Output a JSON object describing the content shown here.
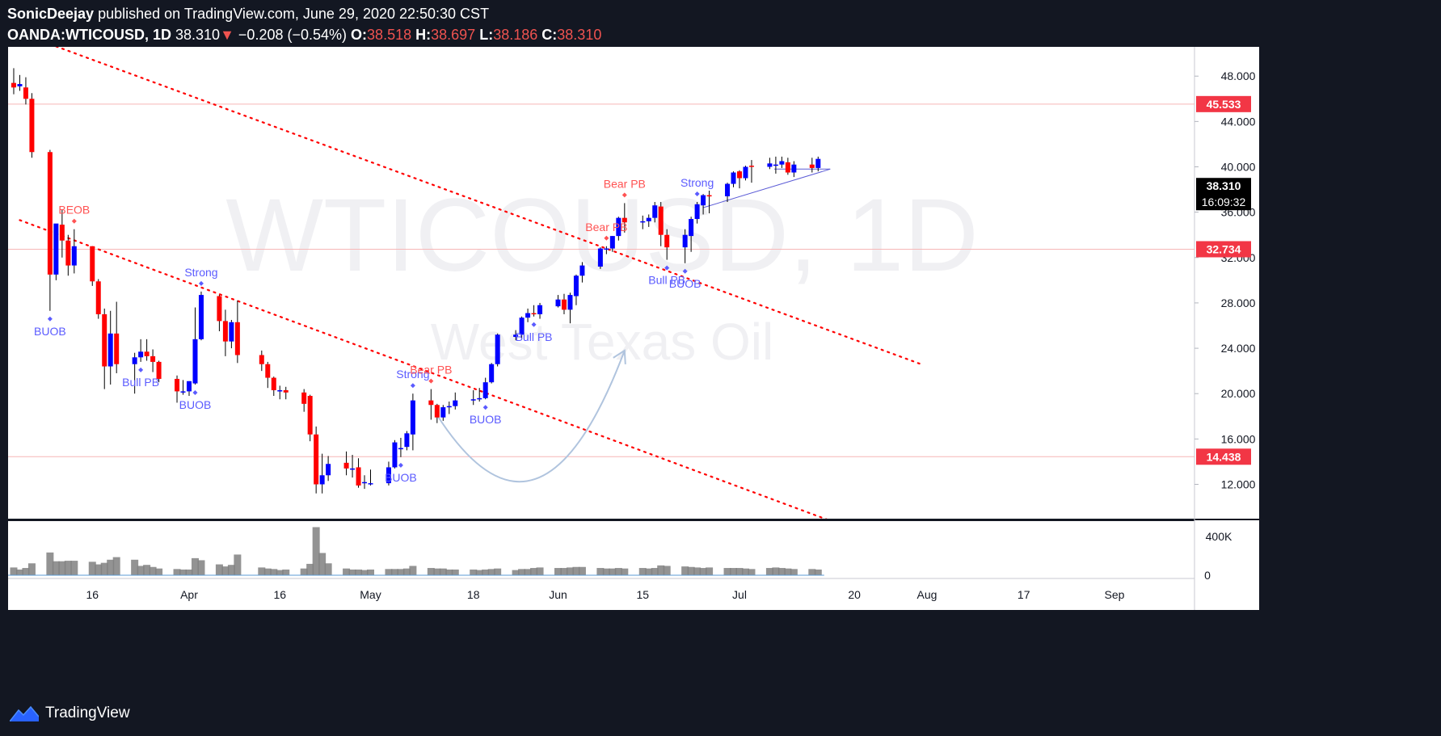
{
  "header": {
    "author": "SonicDeejay",
    "published": " published on TradingView.com, June 29, 2020 22:50:30 CST",
    "symbol": "OANDA:WTICOUSD, 1D",
    "last": "38.310",
    "arrow": "▼",
    "change": "−0.208 (−0.54%)",
    "o_label": "O:",
    "o_value": "38.518",
    "h_label": "H:",
    "h_value": "38.697",
    "l_label": "L:",
    "l_value": "38.186",
    "c_label": "C:",
    "c_value": "38.310"
  },
  "footer": {
    "brand": "TradingView",
    "logo_icon": "tradingview-logo-icon"
  },
  "colors": {
    "background": "#131722",
    "pane": "#ffffff",
    "up": "#0000ff",
    "down": "#ff0000",
    "trendline": "#ff0000",
    "level": "#ff0000",
    "volume": "#808080",
    "annotation_blue": "#5b5bff",
    "annotation_red": "#ff5252",
    "arrow": "#b0c4de",
    "wedge": "#5b5bd6",
    "watermark": "#f0f0f3"
  },
  "chart_data": {
    "type": "candlestick",
    "symbol": "OANDA:WTICOUSD",
    "interval": "1D",
    "watermark": [
      "WTICOUSD, 1D",
      "West Texas Oil"
    ],
    "yticks": [
      "48.000",
      "44.000",
      "40.000",
      "36.000",
      "32.000",
      "28.000",
      "24.000",
      "20.000",
      "16.000",
      "12.000"
    ],
    "ylim": [
      8.0,
      51.8
    ],
    "volume_ticks": [
      "400K",
      "0"
    ],
    "x_ticks": [
      "16",
      "Apr",
      "16",
      "May",
      "18",
      "Jun",
      "15",
      "Jul",
      "20",
      "Aug",
      "17",
      "Sep"
    ],
    "price_levels": [
      {
        "label": "45.533",
        "value": 45.533
      },
      {
        "label": "32.734",
        "value": 32.734
      },
      {
        "label": "14.438",
        "value": 14.438
      }
    ],
    "last_price": {
      "label": "38.310",
      "value": 38.31,
      "countdown": "16:09:32"
    },
    "candles": [
      {
        "date": "2020-03-03",
        "o": 47.4,
        "h": 48.7,
        "l": 46.4,
        "c": 47.0,
        "v": 150
      },
      {
        "date": "2020-03-04",
        "o": 47.1,
        "h": 48.1,
        "l": 46.7,
        "c": 47.3,
        "v": 110
      },
      {
        "date": "2020-03-05",
        "o": 47.0,
        "h": 47.9,
        "l": 45.5,
        "c": 46.0,
        "v": 140
      },
      {
        "date": "2020-03-06",
        "o": 46.0,
        "h": 46.5,
        "l": 40.8,
        "c": 41.3,
        "v": 230
      },
      {
        "date": "2020-03-09",
        "o": 41.3,
        "h": 41.5,
        "l": 27.3,
        "c": 30.5,
        "v": 440
      },
      {
        "date": "2020-03-10",
        "o": 30.5,
        "h": 34.9,
        "l": 30.0,
        "c": 35.0,
        "v": 270
      },
      {
        "date": "2020-03-11",
        "o": 34.9,
        "h": 36.2,
        "l": 32.0,
        "c": 33.5,
        "v": 270
      },
      {
        "date": "2020-03-12",
        "o": 33.5,
        "h": 34.0,
        "l": 30.4,
        "c": 31.3,
        "v": 280
      },
      {
        "date": "2020-03-13",
        "o": 31.3,
        "h": 34.5,
        "l": 30.6,
        "c": 33.0,
        "v": 280
      },
      {
        "date": "2020-03-16",
        "o": 33.0,
        "h": 33.0,
        "l": 29.5,
        "c": 29.9,
        "v": 260
      },
      {
        "date": "2020-03-17",
        "o": 29.9,
        "h": 30.1,
        "l": 26.6,
        "c": 27.0,
        "v": 210
      },
      {
        "date": "2020-03-18",
        "o": 27.0,
        "h": 27.5,
        "l": 20.4,
        "c": 22.4,
        "v": 240
      },
      {
        "date": "2020-03-19",
        "o": 22.4,
        "h": 27.3,
        "l": 20.8,
        "c": 25.3,
        "v": 300
      },
      {
        "date": "2020-03-20",
        "o": 25.3,
        "h": 28.1,
        "l": 21.8,
        "c": 22.6,
        "v": 350
      },
      {
        "date": "2020-03-23",
        "o": 22.6,
        "h": 23.6,
        "l": 20.0,
        "c": 23.2,
        "v": 300
      },
      {
        "date": "2020-03-24",
        "o": 23.2,
        "h": 24.8,
        "l": 22.8,
        "c": 23.7,
        "v": 180
      },
      {
        "date": "2020-03-25",
        "o": 23.7,
        "h": 24.8,
        "l": 22.9,
        "c": 23.3,
        "v": 200
      },
      {
        "date": "2020-03-26",
        "o": 23.3,
        "h": 23.9,
        "l": 21.9,
        "c": 22.8,
        "v": 160
      },
      {
        "date": "2020-03-27",
        "o": 22.8,
        "h": 22.9,
        "l": 21.0,
        "c": 21.3,
        "v": 130
      },
      {
        "date": "2020-03-30",
        "o": 21.3,
        "h": 21.6,
        "l": 19.2,
        "c": 20.2,
        "v": 120
      },
      {
        "date": "2020-03-31",
        "o": 20.2,
        "h": 21.2,
        "l": 19.9,
        "c": 20.2,
        "v": 110
      },
      {
        "date": "2020-04-01",
        "o": 20.2,
        "h": 21.1,
        "l": 19.8,
        "c": 21.1,
        "v": 110
      },
      {
        "date": "2020-04-02",
        "o": 20.9,
        "h": 27.6,
        "l": 20.8,
        "c": 24.8,
        "v": 330
      },
      {
        "date": "2020-04-03",
        "o": 24.8,
        "h": 29.0,
        "l": 24.7,
        "c": 28.7,
        "v": 290
      },
      {
        "date": "2020-04-06",
        "o": 28.6,
        "h": 28.7,
        "l": 25.5,
        "c": 26.4,
        "v": 210
      },
      {
        "date": "2020-04-07",
        "o": 26.4,
        "h": 27.4,
        "l": 23.3,
        "c": 24.6,
        "v": 170
      },
      {
        "date": "2020-04-08",
        "o": 24.6,
        "h": 26.5,
        "l": 24.0,
        "c": 26.3,
        "v": 200
      },
      {
        "date": "2020-04-09",
        "o": 26.3,
        "h": 28.2,
        "l": 22.7,
        "c": 23.4,
        "v": 400
      },
      {
        "date": "2020-04-13",
        "o": 23.4,
        "h": 23.8,
        "l": 22.0,
        "c": 22.6,
        "v": 150
      },
      {
        "date": "2020-04-14",
        "o": 22.6,
        "h": 22.8,
        "l": 20.5,
        "c": 21.4,
        "v": 130
      },
      {
        "date": "2020-04-15",
        "o": 21.4,
        "h": 21.5,
        "l": 19.8,
        "c": 20.3,
        "v": 120
      },
      {
        "date": "2020-04-16",
        "o": 20.3,
        "h": 20.7,
        "l": 19.5,
        "c": 20.3,
        "v": 100
      },
      {
        "date": "2020-04-17",
        "o": 20.3,
        "h": 20.6,
        "l": 19.5,
        "c": 20.1,
        "v": 110
      },
      {
        "date": "2020-04-20",
        "o": 20.1,
        "h": 20.4,
        "l": 18.4,
        "c": 19.1,
        "v": 130
      },
      {
        "date": "2020-04-21",
        "o": 19.8,
        "h": 19.9,
        "l": 15.8,
        "c": 16.4,
        "v": 220
      },
      {
        "date": "2020-04-22",
        "o": 16.4,
        "h": 17.1,
        "l": 11.2,
        "c": 12.0,
        "v": 930
      },
      {
        "date": "2020-04-23",
        "o": 12.0,
        "h": 14.7,
        "l": 11.2,
        "c": 12.8,
        "v": 430
      },
      {
        "date": "2020-04-24",
        "o": 12.8,
        "h": 14.5,
        "l": 12.3,
        "c": 13.8,
        "v": 230
      },
      {
        "date": "2020-04-27",
        "o": 13.9,
        "h": 14.9,
        "l": 12.8,
        "c": 13.4,
        "v": 130
      },
      {
        "date": "2020-04-28",
        "o": 13.4,
        "h": 14.6,
        "l": 12.6,
        "c": 13.4,
        "v": 110
      },
      {
        "date": "2020-04-29",
        "o": 13.5,
        "h": 14.3,
        "l": 11.7,
        "c": 11.9,
        "v": 110
      },
      {
        "date": "2020-04-30",
        "o": 12.2,
        "h": 12.8,
        "l": 11.6,
        "c": 12.2,
        "v": 100
      },
      {
        "date": "2020-05-01",
        "o": 12.1,
        "h": 13.3,
        "l": 11.9,
        "c": 12.1,
        "v": 110
      },
      {
        "date": "2020-05-04",
        "o": 12.1,
        "h": 14.0,
        "l": 11.9,
        "c": 13.5,
        "v": 120
      },
      {
        "date": "2020-05-05",
        "o": 13.5,
        "h": 15.9,
        "l": 13.4,
        "c": 15.7,
        "v": 120
      },
      {
        "date": "2020-05-06",
        "o": 15.1,
        "h": 16.1,
        "l": 14.4,
        "c": 15.2,
        "v": 120
      },
      {
        "date": "2020-05-07",
        "o": 15.3,
        "h": 16.7,
        "l": 15.0,
        "c": 16.5,
        "v": 130
      },
      {
        "date": "2020-05-08",
        "o": 16.4,
        "h": 20.0,
        "l": 15.0,
        "c": 19.4,
        "v": 180
      },
      {
        "date": "2020-05-11",
        "o": 19.4,
        "h": 20.4,
        "l": 17.7,
        "c": 19.0,
        "v": 140
      },
      {
        "date": "2020-05-12",
        "o": 19.0,
        "h": 19.1,
        "l": 17.4,
        "c": 17.9,
        "v": 130
      },
      {
        "date": "2020-05-13",
        "o": 17.9,
        "h": 19.0,
        "l": 17.6,
        "c": 18.8,
        "v": 130
      },
      {
        "date": "2020-05-14",
        "o": 18.8,
        "h": 19.3,
        "l": 18.2,
        "c": 18.9,
        "v": 110
      },
      {
        "date": "2020-05-15",
        "o": 18.9,
        "h": 20.1,
        "l": 18.6,
        "c": 19.4,
        "v": 110
      },
      {
        "date": "2020-05-18",
        "o": 19.4,
        "h": 20.3,
        "l": 19.0,
        "c": 19.5,
        "v": 110
      },
      {
        "date": "2020-05-19",
        "o": 19.5,
        "h": 20.5,
        "l": 19.3,
        "c": 19.6,
        "v": 100
      },
      {
        "date": "2020-05-20",
        "o": 19.6,
        "h": 21.4,
        "l": 19.5,
        "c": 21.0,
        "v": 110
      },
      {
        "date": "2020-05-21",
        "o": 21.0,
        "h": 22.7,
        "l": 20.9,
        "c": 22.6,
        "v": 120
      },
      {
        "date": "2020-05-22",
        "o": 22.6,
        "h": 25.3,
        "l": 22.4,
        "c": 25.2,
        "v": 130
      },
      {
        "date": "2020-05-25",
        "o": 25.0,
        "h": 25.6,
        "l": 24.7,
        "c": 25.2,
        "v": 100
      },
      {
        "date": "2020-05-26",
        "o": 25.2,
        "h": 26.8,
        "l": 24.8,
        "c": 26.7,
        "v": 120
      },
      {
        "date": "2020-05-27",
        "o": 26.7,
        "h": 27.5,
        "l": 26.3,
        "c": 27.1,
        "v": 120
      },
      {
        "date": "2020-05-28",
        "o": 27.1,
        "h": 27.8,
        "l": 26.8,
        "c": 27.0,
        "v": 140
      },
      {
        "date": "2020-05-29",
        "o": 27.0,
        "h": 28.0,
        "l": 26.6,
        "c": 27.8,
        "v": 150
      },
      {
        "date": "2020-06-01",
        "o": 27.7,
        "h": 28.7,
        "l": 27.6,
        "c": 28.3,
        "v": 140
      },
      {
        "date": "2020-06-02",
        "o": 28.3,
        "h": 28.8,
        "l": 27.0,
        "c": 27.4,
        "v": 140
      },
      {
        "date": "2020-06-03",
        "o": 27.4,
        "h": 28.9,
        "l": 26.2,
        "c": 28.7,
        "v": 150
      },
      {
        "date": "2020-06-04",
        "o": 28.6,
        "h": 30.5,
        "l": 27.8,
        "c": 30.4,
        "v": 160
      },
      {
        "date": "2020-06-05",
        "o": 30.4,
        "h": 31.6,
        "l": 29.8,
        "c": 31.3,
        "v": 160
      },
      {
        "date": "2020-06-08",
        "o": 31.2,
        "h": 32.9,
        "l": 31.0,
        "c": 32.8,
        "v": 140
      },
      {
        "date": "2020-06-09",
        "o": 32.7,
        "h": 33.0,
        "l": 32.3,
        "c": 32.8,
        "v": 130
      },
      {
        "date": "2020-06-10",
        "o": 32.8,
        "h": 33.9,
        "l": 32.5,
        "c": 33.9,
        "v": 130
      },
      {
        "date": "2020-06-11",
        "o": 33.9,
        "h": 35.6,
        "l": 33.5,
        "c": 35.5,
        "v": 140
      },
      {
        "date": "2020-06-12",
        "o": 35.5,
        "h": 36.8,
        "l": 34.2,
        "c": 35.1,
        "v": 130
      },
      {
        "date": "2020-06-15",
        "o": 35.1,
        "h": 35.7,
        "l": 34.5,
        "c": 35.2,
        "v": 140
      },
      {
        "date": "2020-06-16",
        "o": 35.2,
        "h": 35.8,
        "l": 34.7,
        "c": 35.5,
        "v": 130
      },
      {
        "date": "2020-06-17",
        "o": 35.5,
        "h": 36.9,
        "l": 35.1,
        "c": 36.6,
        "v": 140
      },
      {
        "date": "2020-06-18",
        "o": 36.5,
        "h": 36.9,
        "l": 33.0,
        "c": 34.0,
        "v": 190
      },
      {
        "date": "2020-06-19",
        "o": 34.0,
        "h": 34.5,
        "l": 31.8,
        "c": 32.9,
        "v": 180
      },
      {
        "date": "2020-06-22",
        "o": 32.9,
        "h": 34.5,
        "l": 31.5,
        "c": 34.0,
        "v": 170
      },
      {
        "date": "2020-06-23",
        "o": 33.9,
        "h": 35.6,
        "l": 32.5,
        "c": 35.4,
        "v": 160
      },
      {
        "date": "2020-06-24",
        "o": 35.4,
        "h": 36.9,
        "l": 35.0,
        "c": 36.7,
        "v": 150
      },
      {
        "date": "2020-06-25",
        "o": 36.6,
        "h": 37.6,
        "l": 35.8,
        "c": 37.5,
        "v": 140
      },
      {
        "date": "2020-06-26",
        "o": 37.5,
        "h": 37.9,
        "l": 35.9,
        "c": 37.4,
        "v": 150
      },
      {
        "date": "2020-06-29",
        "o": 37.4,
        "h": 38.6,
        "l": 36.9,
        "c": 38.5,
        "v": 140
      },
      {
        "date": "2020-06-30",
        "o": 38.5,
        "h": 39.6,
        "l": 38.2,
        "c": 39.5,
        "v": 140
      },
      {
        "date": "2020-07-01",
        "o": 39.6,
        "h": 39.7,
        "l": 38.1,
        "c": 39.0,
        "v": 140
      },
      {
        "date": "2020-07-02",
        "o": 39.0,
        "h": 40.1,
        "l": 38.8,
        "c": 40.0,
        "v": 130
      },
      {
        "date": "2020-07-03",
        "o": 40.1,
        "h": 40.6,
        "l": 38.6,
        "c": 40.0,
        "v": 120
      },
      {
        "date": "2020-07-06",
        "o": 40.0,
        "h": 40.8,
        "l": 39.8,
        "c": 40.3,
        "v": 140
      },
      {
        "date": "2020-07-07",
        "o": 40.1,
        "h": 40.9,
        "l": 39.4,
        "c": 40.2,
        "v": 150
      },
      {
        "date": "2020-07-08",
        "o": 40.2,
        "h": 40.9,
        "l": 39.9,
        "c": 40.5,
        "v": 140
      },
      {
        "date": "2020-07-09",
        "o": 40.4,
        "h": 40.8,
        "l": 39.3,
        "c": 39.5,
        "v": 130
      },
      {
        "date": "2020-07-10",
        "o": 39.5,
        "h": 40.5,
        "l": 39.1,
        "c": 40.2,
        "v": 120
      },
      {
        "date": "2020-07-13",
        "o": 40.2,
        "h": 40.8,
        "l": 39.5,
        "c": 39.9,
        "v": 120
      },
      {
        "date": "2020-07-14",
        "o": 39.9,
        "h": 40.9,
        "l": 39.6,
        "c": 40.7,
        "v": 110
      }
    ],
    "signals": [
      {
        "text": "BUOB",
        "date": "2020-03-09",
        "color": "blue",
        "pos": "below"
      },
      {
        "text": "BEOB",
        "date": "2020-03-13",
        "color": "red",
        "pos": "above"
      },
      {
        "text": "Bull PB",
        "date": "2020-03-24",
        "color": "blue",
        "pos": "below"
      },
      {
        "text": "BUOB",
        "date": "2020-04-02",
        "color": "blue",
        "pos": "below"
      },
      {
        "text": "Strong",
        "date": "2020-04-03",
        "color": "blue",
        "pos": "above"
      },
      {
        "text": "BUOB",
        "date": "2020-05-06",
        "color": "blue",
        "pos": "below"
      },
      {
        "text": "Strong",
        "date": "2020-05-08",
        "color": "blue",
        "pos": "above"
      },
      {
        "text": "Bear PB",
        "date": "2020-05-11",
        "color": "red",
        "pos": "above"
      },
      {
        "text": "BUOB",
        "date": "2020-05-20",
        "color": "blue",
        "pos": "below"
      },
      {
        "text": "Bull PB",
        "date": "2020-05-28",
        "color": "blue",
        "pos": "below"
      },
      {
        "text": "Bear PB",
        "date": "2020-06-09",
        "color": "red",
        "pos": "above"
      },
      {
        "text": "Bear PB",
        "date": "2020-06-12",
        "color": "red",
        "pos": "above"
      },
      {
        "text": "Bull PB",
        "date": "2020-06-19",
        "color": "blue",
        "pos": "below"
      },
      {
        "text": "BUOB",
        "date": "2020-06-22",
        "color": "blue",
        "pos": "below"
      },
      {
        "text": "Strong",
        "date": "2020-06-24",
        "color": "blue",
        "pos": "above"
      }
    ],
    "trendlines": [
      {
        "name": "upper-trendline",
        "from": {
          "date": "2020-03-04",
          "price": 51.8
        },
        "to": {
          "date": "2020-07-31",
          "price": 22.6
        }
      },
      {
        "name": "lower-trendline",
        "from": {
          "date": "2020-03-04",
          "price": 35.3
        },
        "to": {
          "date": "2020-07-20",
          "price": 8.0
        }
      }
    ]
  }
}
